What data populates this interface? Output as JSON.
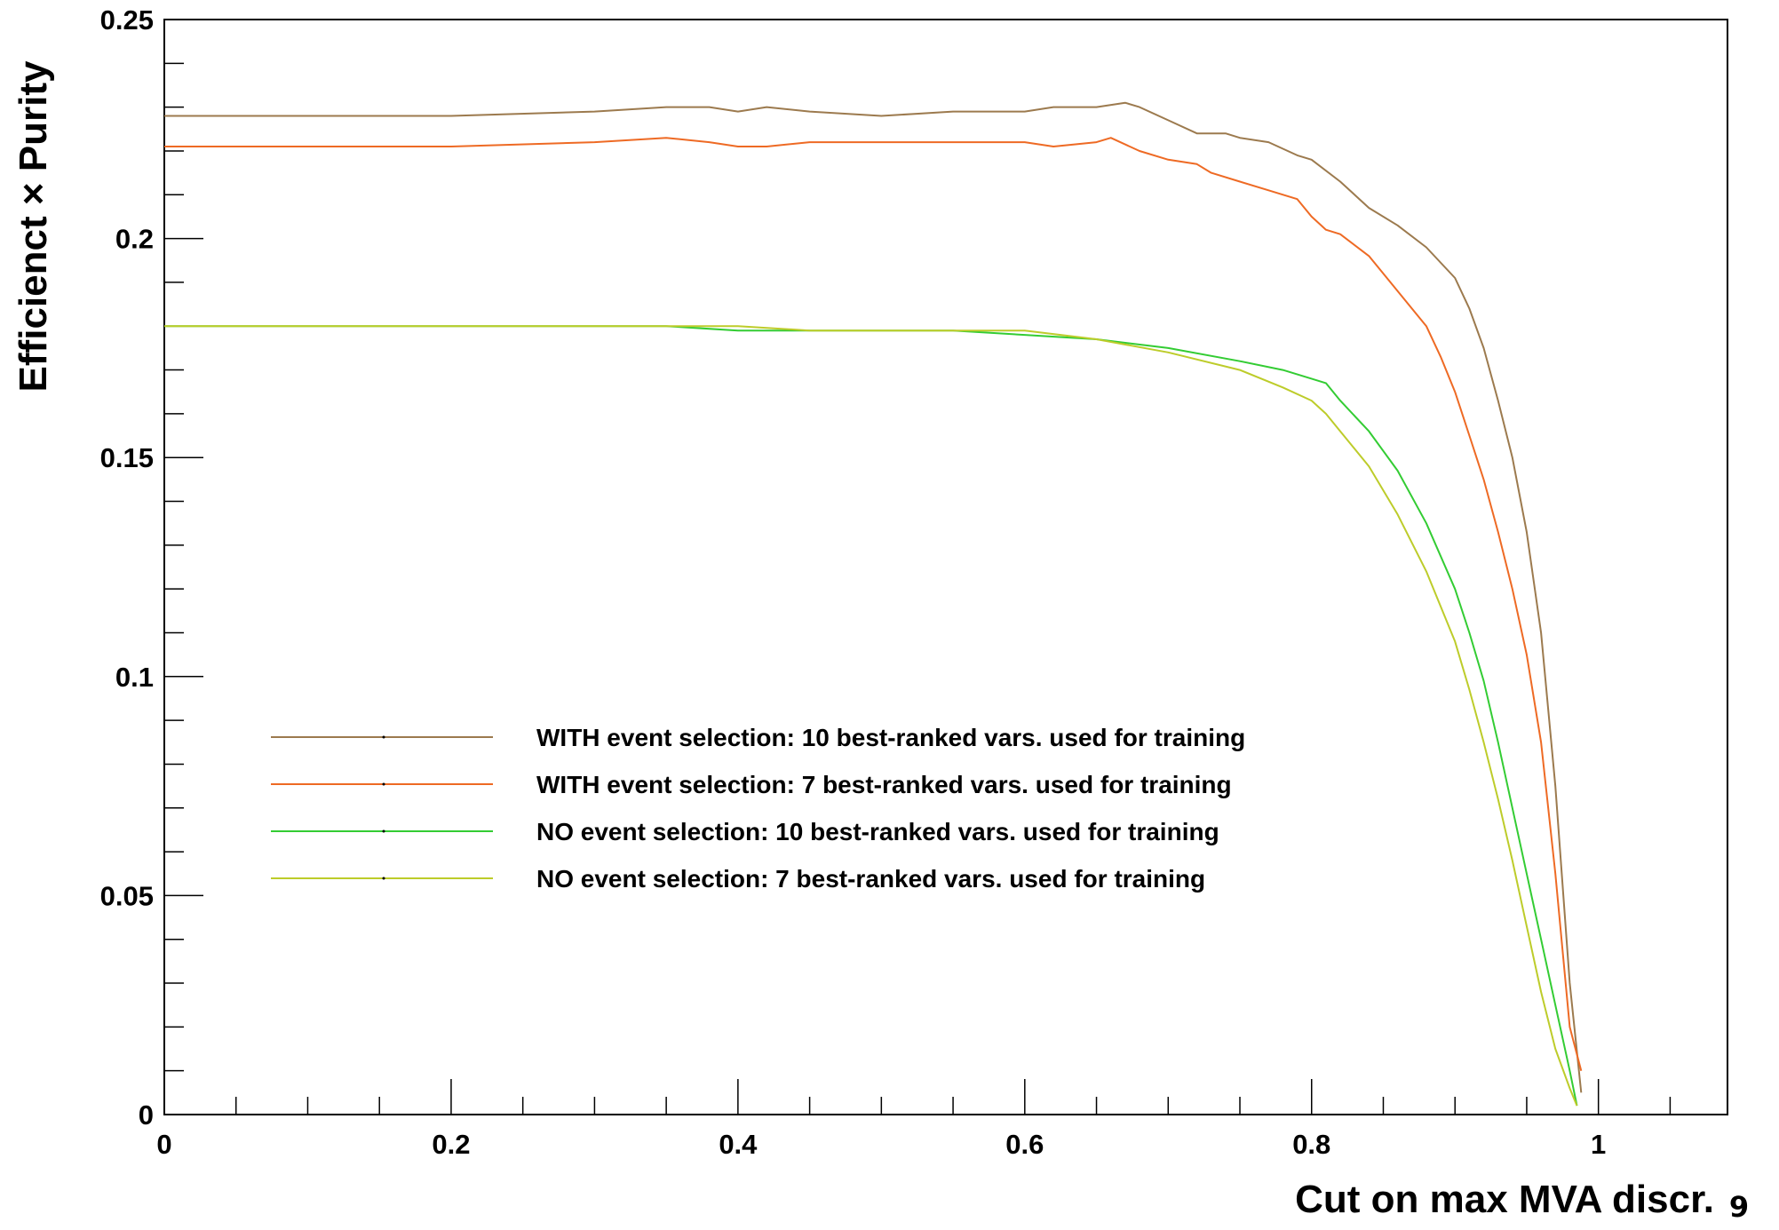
{
  "page_number": "9",
  "chart_data": {
    "type": "line",
    "xlabel": "Cut on max MVA discr.",
    "ylabel": "Efficienct × Purity",
    "xlim": [
      0,
      1.09
    ],
    "ylim": [
      0,
      0.25
    ],
    "x_ticks": [
      "0",
      "0.2",
      "0.4",
      "0.6",
      "0.8",
      "1"
    ],
    "y_ticks": [
      "0",
      "0.05",
      "0.1",
      "0.15",
      "0.2",
      "0.25"
    ],
    "grid": false,
    "legend_position": "center-left",
    "series": [
      {
        "name": "WITH event selection: 10 best-ranked vars. used for training",
        "color": "#9c7a4e",
        "x": [
          0,
          0.05,
          0.1,
          0.2,
          0.3,
          0.35,
          0.38,
          0.4,
          0.42,
          0.45,
          0.5,
          0.55,
          0.6,
          0.62,
          0.65,
          0.67,
          0.68,
          0.7,
          0.72,
          0.74,
          0.75,
          0.77,
          0.79,
          0.8,
          0.82,
          0.84,
          0.86,
          0.88,
          0.9,
          0.91,
          0.92,
          0.93,
          0.94,
          0.95,
          0.96,
          0.97,
          0.98,
          0.988
        ],
        "y": [
          0.228,
          0.228,
          0.228,
          0.228,
          0.229,
          0.23,
          0.23,
          0.229,
          0.23,
          0.229,
          0.228,
          0.229,
          0.229,
          0.23,
          0.23,
          0.231,
          0.23,
          0.227,
          0.224,
          0.224,
          0.223,
          0.222,
          0.219,
          0.218,
          0.213,
          0.207,
          0.203,
          0.198,
          0.191,
          0.184,
          0.175,
          0.163,
          0.15,
          0.133,
          0.11,
          0.075,
          0.03,
          0.005
        ]
      },
      {
        "name": "WITH event selection: 7 best-ranked vars. used for training",
        "color": "#ee6a24",
        "x": [
          0,
          0.1,
          0.2,
          0.3,
          0.35,
          0.38,
          0.4,
          0.42,
          0.45,
          0.5,
          0.55,
          0.6,
          0.62,
          0.65,
          0.66,
          0.68,
          0.7,
          0.72,
          0.73,
          0.75,
          0.77,
          0.79,
          0.8,
          0.81,
          0.82,
          0.84,
          0.86,
          0.88,
          0.89,
          0.9,
          0.91,
          0.92,
          0.93,
          0.94,
          0.95,
          0.96,
          0.97,
          0.98,
          0.988
        ],
        "y": [
          0.221,
          0.221,
          0.221,
          0.222,
          0.223,
          0.222,
          0.221,
          0.221,
          0.222,
          0.222,
          0.222,
          0.222,
          0.221,
          0.222,
          0.223,
          0.22,
          0.218,
          0.217,
          0.215,
          0.213,
          0.211,
          0.209,
          0.205,
          0.202,
          0.201,
          0.196,
          0.188,
          0.18,
          0.173,
          0.165,
          0.155,
          0.145,
          0.133,
          0.12,
          0.105,
          0.085,
          0.055,
          0.02,
          0.01
        ]
      },
      {
        "name": "NO event selection: 10 best-ranked vars. used for training",
        "color": "#33cc33",
        "x": [
          0,
          0.1,
          0.2,
          0.3,
          0.35,
          0.4,
          0.45,
          0.5,
          0.55,
          0.6,
          0.65,
          0.7,
          0.75,
          0.78,
          0.8,
          0.81,
          0.82,
          0.84,
          0.86,
          0.88,
          0.9,
          0.91,
          0.92,
          0.93,
          0.94,
          0.95,
          0.96,
          0.97,
          0.98,
          0.985
        ],
        "y": [
          0.18,
          0.18,
          0.18,
          0.18,
          0.18,
          0.179,
          0.179,
          0.179,
          0.179,
          0.178,
          0.177,
          0.175,
          0.172,
          0.17,
          0.168,
          0.167,
          0.163,
          0.156,
          0.147,
          0.135,
          0.12,
          0.11,
          0.099,
          0.085,
          0.07,
          0.055,
          0.04,
          0.025,
          0.01,
          0.002
        ]
      },
      {
        "name": "NO event selection: 7 best-ranked vars. used for training",
        "color": "#bdcc2a",
        "x": [
          0,
          0.1,
          0.2,
          0.3,
          0.35,
          0.4,
          0.45,
          0.5,
          0.55,
          0.6,
          0.65,
          0.7,
          0.75,
          0.78,
          0.8,
          0.81,
          0.82,
          0.84,
          0.86,
          0.88,
          0.9,
          0.91,
          0.92,
          0.93,
          0.94,
          0.95,
          0.96,
          0.97,
          0.98,
          0.985
        ],
        "y": [
          0.18,
          0.18,
          0.18,
          0.18,
          0.18,
          0.18,
          0.179,
          0.179,
          0.179,
          0.179,
          0.177,
          0.174,
          0.17,
          0.166,
          0.163,
          0.16,
          0.156,
          0.148,
          0.137,
          0.124,
          0.108,
          0.097,
          0.085,
          0.072,
          0.058,
          0.043,
          0.028,
          0.015,
          0.006,
          0.002
        ]
      }
    ]
  }
}
